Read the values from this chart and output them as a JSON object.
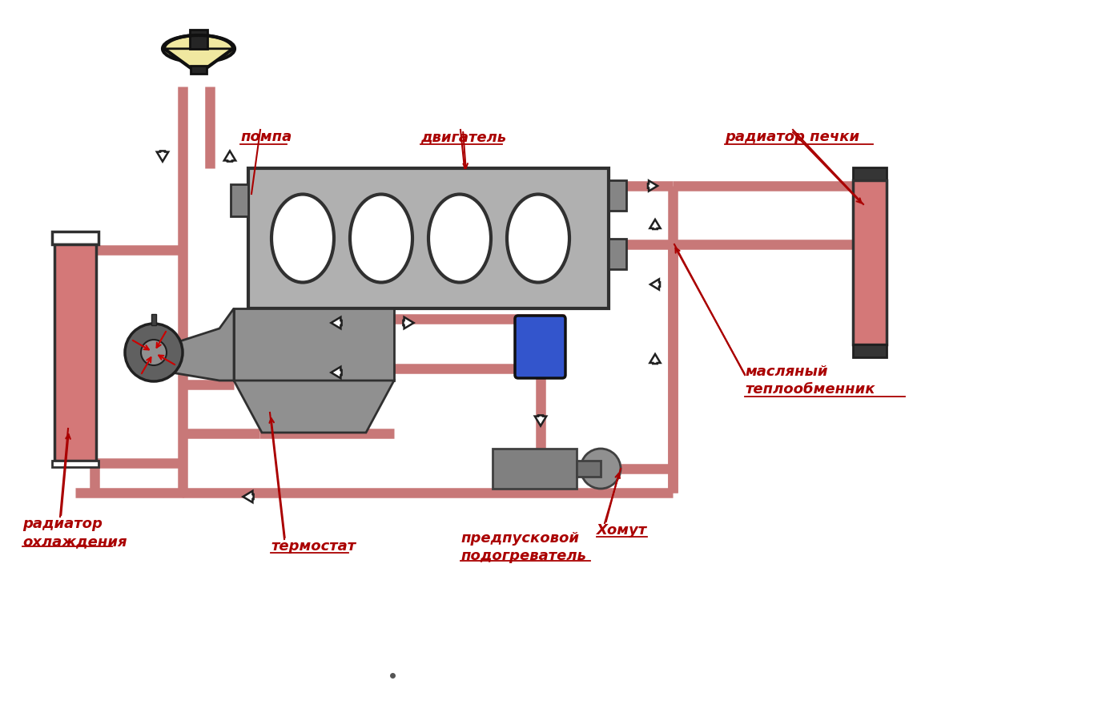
{
  "bg_color": "#ffffff",
  "pipe_color": "#c87878",
  "pipe_lw": 9,
  "engine_fill": "#b0b0b0",
  "engine_edge": "#303030",
  "radiator_fill": "#d47878",
  "expansion_fill": "#f0e8a0",
  "expansion_edge": "#101010",
  "blue_fill": "#3355cc",
  "label_color": "#aa0000",
  "arrow_fc": "#ffffff",
  "arrow_ec": "#202020",
  "labels": {
    "pompa": "помпа",
    "dvigatel": "двигатель",
    "radiator_pechki": "радиатор печки",
    "maslyany": "масляный\nтеплообменник",
    "radiator_ohlazhdenia": "радиатор\nохлаждения",
    "termostat": "термостат",
    "predpuskovoy": "предпусковой\nподогреватель",
    "homut": "Хомут"
  }
}
